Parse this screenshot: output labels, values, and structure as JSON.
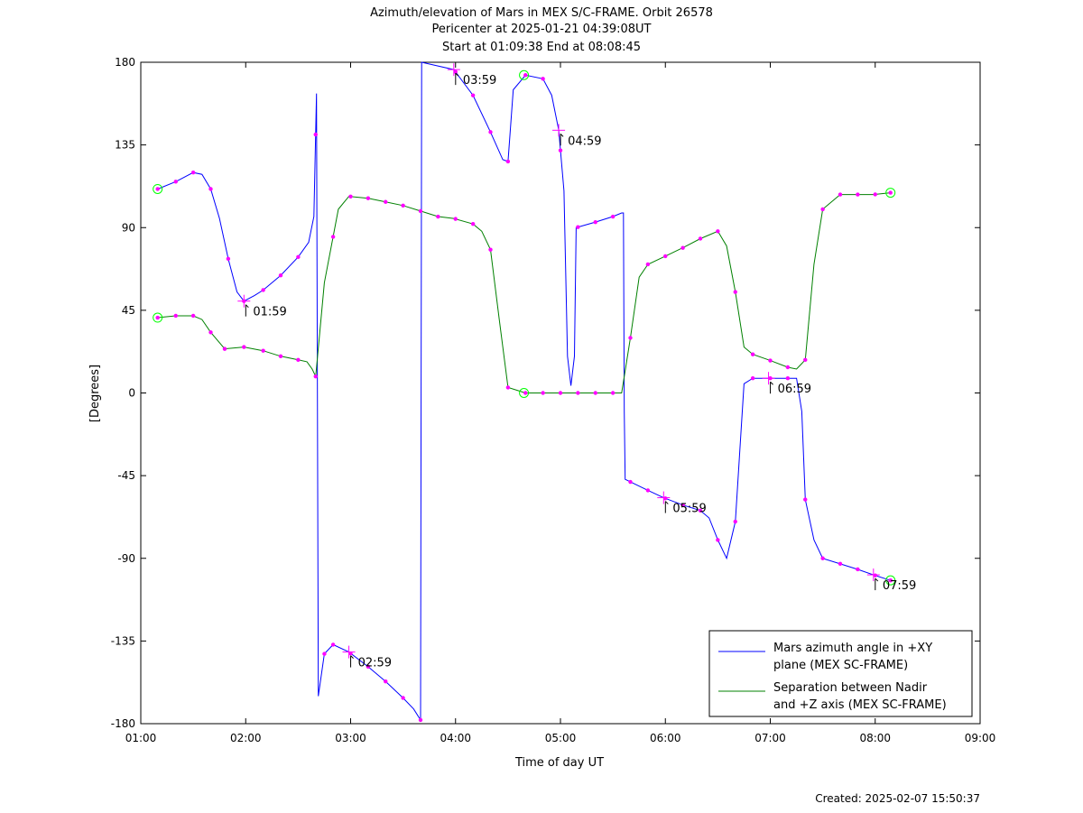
{
  "title_lines": [
    "Azimuth/elevation of Mars in MEX S/C-FRAME.  Orbit 26578",
    "Pericenter at 2025-01-21 04:39:08UT",
    "Start at 01:09:38 End at 08:08:45"
  ],
  "created": "Created: 2025-02-07 15:50:37",
  "colors": {
    "azimuth": "#0000ff",
    "separation": "#008000",
    "marker": "#ff00ff",
    "endpoint": "#00ff00"
  },
  "chart_data": {
    "type": "line",
    "xlabel": "Time of day UT",
    "ylabel": "[Degrees]",
    "xlim": [
      "01:00",
      "09:00"
    ],
    "ylim": [
      -180,
      180
    ],
    "x_tick_labels": [
      "01:00",
      "02:00",
      "03:00",
      "04:00",
      "05:00",
      "06:00",
      "07:00",
      "08:00",
      "09:00"
    ],
    "y_ticks": [
      180,
      135,
      90,
      45,
      0,
      -45,
      -90,
      -135,
      -180
    ],
    "legend_position": "bottom-right",
    "hour_annotations": [
      {
        "time": "01:59",
        "label": "01:59",
        "y": 50
      },
      {
        "time": "02:59",
        "label": "02:59",
        "y": -141
      },
      {
        "time": "03:59",
        "label": "03:59",
        "y": 176
      },
      {
        "time": "04:59",
        "label": "04:59",
        "y": 143
      },
      {
        "time": "05:59",
        "label": "05:59",
        "y": -57
      },
      {
        "time": "06:59",
        "label": "06:59",
        "y": 8
      },
      {
        "time": "07:59",
        "label": "07:59",
        "y": -99
      }
    ],
    "series": [
      {
        "name": "Mars azimuth angle in +XY plane (MEX SC-FRAME)",
        "legend_lines": [
          "Mars azimuth angle in +XY",
          "plane (MEX SC-FRAME)"
        ],
        "color": "#0000ff",
        "points": [
          [
            "01:09:38",
            111
          ],
          [
            "01:20",
            115
          ],
          [
            "01:30",
            120
          ],
          [
            "01:35",
            119
          ],
          [
            "01:40",
            111
          ],
          [
            "01:45",
            95
          ],
          [
            "01:50",
            73
          ],
          [
            "01:55",
            55
          ],
          [
            "01:59",
            50
          ],
          [
            "02:05",
            53
          ],
          [
            "02:10",
            56
          ],
          [
            "02:20",
            64
          ],
          [
            "02:30",
            74
          ],
          [
            "02:36",
            82
          ],
          [
            "02:39",
            96
          ],
          [
            "02:40.5",
            163
          ],
          [
            "02:41",
            0
          ],
          [
            "02:41.5",
            -165
          ],
          [
            "02:45",
            -142
          ],
          [
            "02:50",
            -137
          ],
          [
            "02:59",
            -141
          ],
          [
            "03:10",
            -149
          ],
          [
            "03:20",
            -157
          ],
          [
            "03:30",
            -166
          ],
          [
            "03:36",
            -172
          ],
          [
            "03:40",
            -178
          ],
          [
            "03:40.3",
            0
          ],
          [
            "03:40.6",
            180
          ],
          [
            "03:59",
            176
          ],
          [
            "04:10",
            162
          ],
          [
            "04:20",
            142
          ],
          [
            "04:27",
            127
          ],
          [
            "04:30",
            126
          ],
          [
            "04:33",
            165
          ],
          [
            "04:40",
            173
          ],
          [
            "04:50",
            171
          ],
          [
            "04:55",
            162
          ],
          [
            "04:59",
            143
          ],
          [
            "05:02",
            110
          ],
          [
            "05:04",
            20
          ],
          [
            "05:06",
            4
          ],
          [
            "05:08",
            20
          ],
          [
            "05:09",
            90
          ],
          [
            "05:20",
            93
          ],
          [
            "05:30",
            96
          ],
          [
            "05:35",
            98
          ],
          [
            "05:36",
            98
          ],
          [
            "05:36.5",
            -10
          ],
          [
            "05:37",
            -47
          ],
          [
            "05:50",
            -53
          ],
          [
            "05:59",
            -57
          ],
          [
            "06:10",
            -61
          ],
          [
            "06:20",
            -64
          ],
          [
            "06:25",
            -68
          ],
          [
            "06:30",
            -80
          ],
          [
            "06:35",
            -90
          ],
          [
            "06:40",
            -70
          ],
          [
            "06:45",
            5
          ],
          [
            "06:50",
            8
          ],
          [
            "06:59",
            8
          ],
          [
            "07:10",
            8
          ],
          [
            "07:15",
            8
          ],
          [
            "07:18",
            -10
          ],
          [
            "07:20",
            -58
          ],
          [
            "07:25",
            -80
          ],
          [
            "07:30",
            -90
          ],
          [
            "07:40",
            -93
          ],
          [
            "07:50",
            -96
          ],
          [
            "07:59",
            -99
          ],
          [
            "08:08:45",
            -102
          ]
        ],
        "markers": [
          "01:09:38",
          "01:20",
          "01:30",
          "01:40",
          "01:50",
          "01:59",
          "02:10",
          "02:20",
          "02:30",
          "02:40",
          "02:45",
          "02:50",
          "03:00",
          "03:10",
          "03:20",
          "03:30",
          "03:40",
          "04:00",
          "04:10",
          "04:20",
          "04:30",
          "04:40",
          "04:50",
          "05:00",
          "05:10",
          "05:20",
          "05:30",
          "05:40",
          "05:50",
          "06:00",
          "06:10",
          "06:20",
          "06:30",
          "06:40",
          "06:50",
          "07:00",
          "07:10",
          "07:20",
          "07:30",
          "07:40",
          "07:50",
          "08:00",
          "08:08:45"
        ]
      },
      {
        "name": "Separation between Nadir and +Z axis (MEX SC-FRAME)",
        "legend_lines": [
          "Separation between Nadir",
          "and +Z axis (MEX SC-FRAME)"
        ],
        "color": "#008000",
        "points": [
          [
            "01:09:38",
            41
          ],
          [
            "01:20",
            42
          ],
          [
            "01:30",
            42
          ],
          [
            "01:35",
            40
          ],
          [
            "01:40",
            33
          ],
          [
            "01:48",
            24
          ],
          [
            "01:59",
            25
          ],
          [
            "02:10",
            23
          ],
          [
            "02:20",
            20
          ],
          [
            "02:30",
            18
          ],
          [
            "02:35",
            17
          ],
          [
            "02:38",
            13
          ],
          [
            "02:40",
            9
          ],
          [
            "02:45",
            60
          ],
          [
            "02:50",
            85
          ],
          [
            "02:53",
            100
          ],
          [
            "02:59",
            107
          ],
          [
            "03:10",
            106
          ],
          [
            "03:20",
            104
          ],
          [
            "03:30",
            102
          ],
          [
            "03:40",
            99
          ],
          [
            "03:50",
            96
          ],
          [
            "03:59",
            95
          ],
          [
            "04:10",
            92
          ],
          [
            "04:15",
            88
          ],
          [
            "04:20",
            78
          ],
          [
            "04:25",
            40
          ],
          [
            "04:30",
            3
          ],
          [
            "04:40",
            0
          ],
          [
            "04:50",
            0
          ],
          [
            "04:59",
            0
          ],
          [
            "05:10",
            0
          ],
          [
            "05:20",
            0
          ],
          [
            "05:30",
            0
          ],
          [
            "05:35",
            0
          ],
          [
            "05:40",
            30
          ],
          [
            "05:45",
            63
          ],
          [
            "05:50",
            70
          ],
          [
            "05:59",
            74
          ],
          [
            "06:10",
            79
          ],
          [
            "06:20",
            84
          ],
          [
            "06:30",
            88
          ],
          [
            "06:35",
            80
          ],
          [
            "06:40",
            55
          ],
          [
            "06:45",
            25
          ],
          [
            "06:50",
            21
          ],
          [
            "06:59",
            18
          ],
          [
            "07:10",
            14
          ],
          [
            "07:15",
            13
          ],
          [
            "07:20",
            18
          ],
          [
            "07:25",
            70
          ],
          [
            "07:30",
            100
          ],
          [
            "07:40",
            108
          ],
          [
            "07:50",
            108
          ],
          [
            "07:59",
            108
          ],
          [
            "08:08:45",
            109
          ]
        ],
        "markers": [
          "01:09:38",
          "01:20",
          "01:30",
          "01:40",
          "01:48",
          "01:59",
          "02:10",
          "02:20",
          "02:30",
          "02:40",
          "02:50",
          "03:00",
          "03:10",
          "03:20",
          "03:30",
          "03:40",
          "03:50",
          "04:00",
          "04:10",
          "04:20",
          "04:30",
          "04:40",
          "04:50",
          "05:00",
          "05:10",
          "05:20",
          "05:30",
          "05:40",
          "05:50",
          "06:00",
          "06:10",
          "06:20",
          "06:30",
          "06:40",
          "06:50",
          "07:00",
          "07:10",
          "07:20",
          "07:30",
          "07:40",
          "07:50",
          "08:00",
          "08:08:45"
        ]
      }
    ]
  }
}
